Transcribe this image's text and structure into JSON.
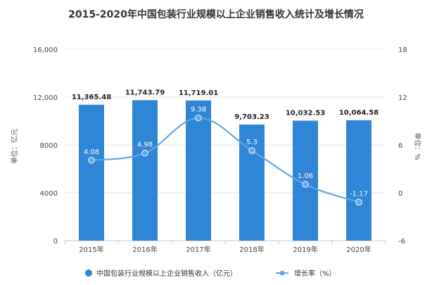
{
  "title": "2015-2020年中国包装行业规模以上企业销售收入统计及增长情况",
  "chart_data": {
    "type": "bar",
    "categories": [
      "2015年",
      "2016年",
      "2017年",
      "2018年",
      "2019年",
      "2020年"
    ],
    "series": [
      {
        "name": "中国包装行业规模以上企业销售收入（亿元）",
        "type": "bar",
        "axis": "left",
        "values": [
          11365.48,
          11743.79,
          11719.01,
          9703.23,
          10032.53,
          10064.58
        ],
        "labels": [
          "11,365.48",
          "11,743.79",
          "11,719.01",
          "9,703.23",
          "10,032.53",
          "10,064.58"
        ]
      },
      {
        "name": "增长率（%）",
        "type": "line",
        "axis": "right",
        "values": [
          4.08,
          4.98,
          9.38,
          5.3,
          1.06,
          -1.17
        ],
        "labels": [
          "4.08",
          "4.98",
          "9.38",
          "5.3",
          "1.06",
          "-1.17"
        ]
      }
    ],
    "ylabel": "单位：亿元",
    "y2label": "单位：%",
    "ylim": [
      0,
      16000
    ],
    "y2lim": [
      -6,
      18
    ],
    "yticks": [
      0,
      4000,
      8000,
      12000,
      16000
    ],
    "ytick_labels": [
      "0",
      "4000",
      "8000",
      "12,000",
      "16,000"
    ],
    "y2ticks": [
      -6,
      0,
      6,
      12,
      18
    ],
    "y2tick_labels": [
      "-6",
      "0",
      "6",
      "12",
      "18"
    ],
    "grid": true,
    "legend": "bottom",
    "colors": {
      "bar": "#2f86d6",
      "line": "#5ea8e4",
      "grid": "#e6e6e6",
      "axis": "#c8c8c8"
    }
  }
}
